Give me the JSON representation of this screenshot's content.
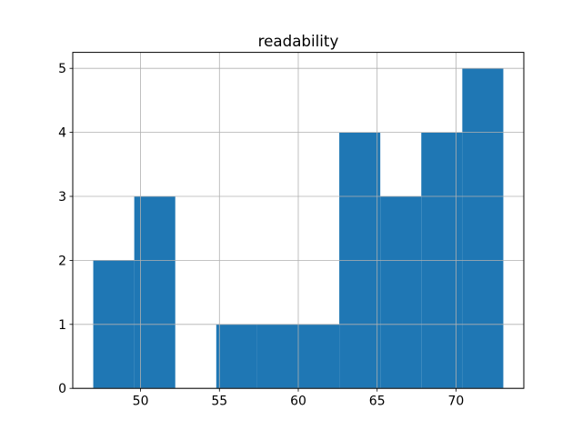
{
  "figure": {
    "background": "#ffffff"
  },
  "chart_data": {
    "type": "bar",
    "subtype": "histogram",
    "title": "readability",
    "xlabel": "",
    "ylabel": "",
    "bin_edges": [
      47.0,
      49.6,
      52.2,
      54.8,
      57.4,
      60.0,
      62.6,
      65.2,
      67.8,
      70.4,
      73.0
    ],
    "counts": [
      2,
      3,
      0,
      1,
      1,
      1,
      4,
      3,
      4,
      5
    ],
    "xticks": [
      50,
      55,
      60,
      65,
      70
    ],
    "yticks": [
      0,
      1,
      2,
      3,
      4,
      5
    ],
    "xlim": [
      45.7,
      74.3
    ],
    "ylim": [
      0,
      5.25
    ],
    "grid": true,
    "grid_over_bars": true,
    "legend_position": "none",
    "colors": {
      "bar": "#1f77b4",
      "grid": "#b0b0b0",
      "spine": "#000000",
      "tick_label": "#000000",
      "title": "#000000",
      "background": "#ffffff"
    }
  }
}
